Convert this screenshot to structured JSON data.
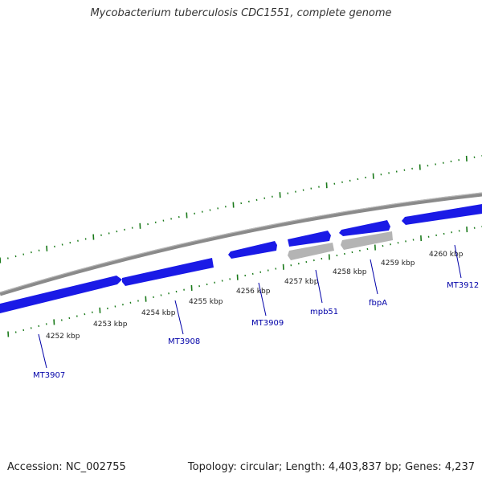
{
  "title": "Mycobacterium tuberculosis CDC1551, complete genome",
  "footer": {
    "accession": "Accession: NC_002755",
    "topology": "Topology: circular; Length: 4,403,837 bp; Genes: 4,237"
  },
  "colors": {
    "backbone": "#8a8a8a",
    "gene": "#1a1ae6",
    "gene_light": "#6a6aff",
    "gene_gray": "#b4b4b4",
    "tick": "#1a7a1a",
    "label": "#0000a8"
  },
  "ticks": [
    {
      "label": "4252 kbp"
    },
    {
      "label": "4253 kbp"
    },
    {
      "label": "4254 kbp"
    },
    {
      "label": "4255 kbp"
    },
    {
      "label": "4256 kbp"
    },
    {
      "label": "4257 kbp"
    },
    {
      "label": "4258 kbp"
    },
    {
      "label": "4259 kbp"
    },
    {
      "label": "4260 kbp"
    }
  ],
  "genes": [
    {
      "label": "MT3907"
    },
    {
      "label": "MT3908"
    },
    {
      "label": "MT3909"
    },
    {
      "label": "mpb51"
    },
    {
      "label": "fbpA"
    },
    {
      "label": "MT3912"
    }
  ]
}
